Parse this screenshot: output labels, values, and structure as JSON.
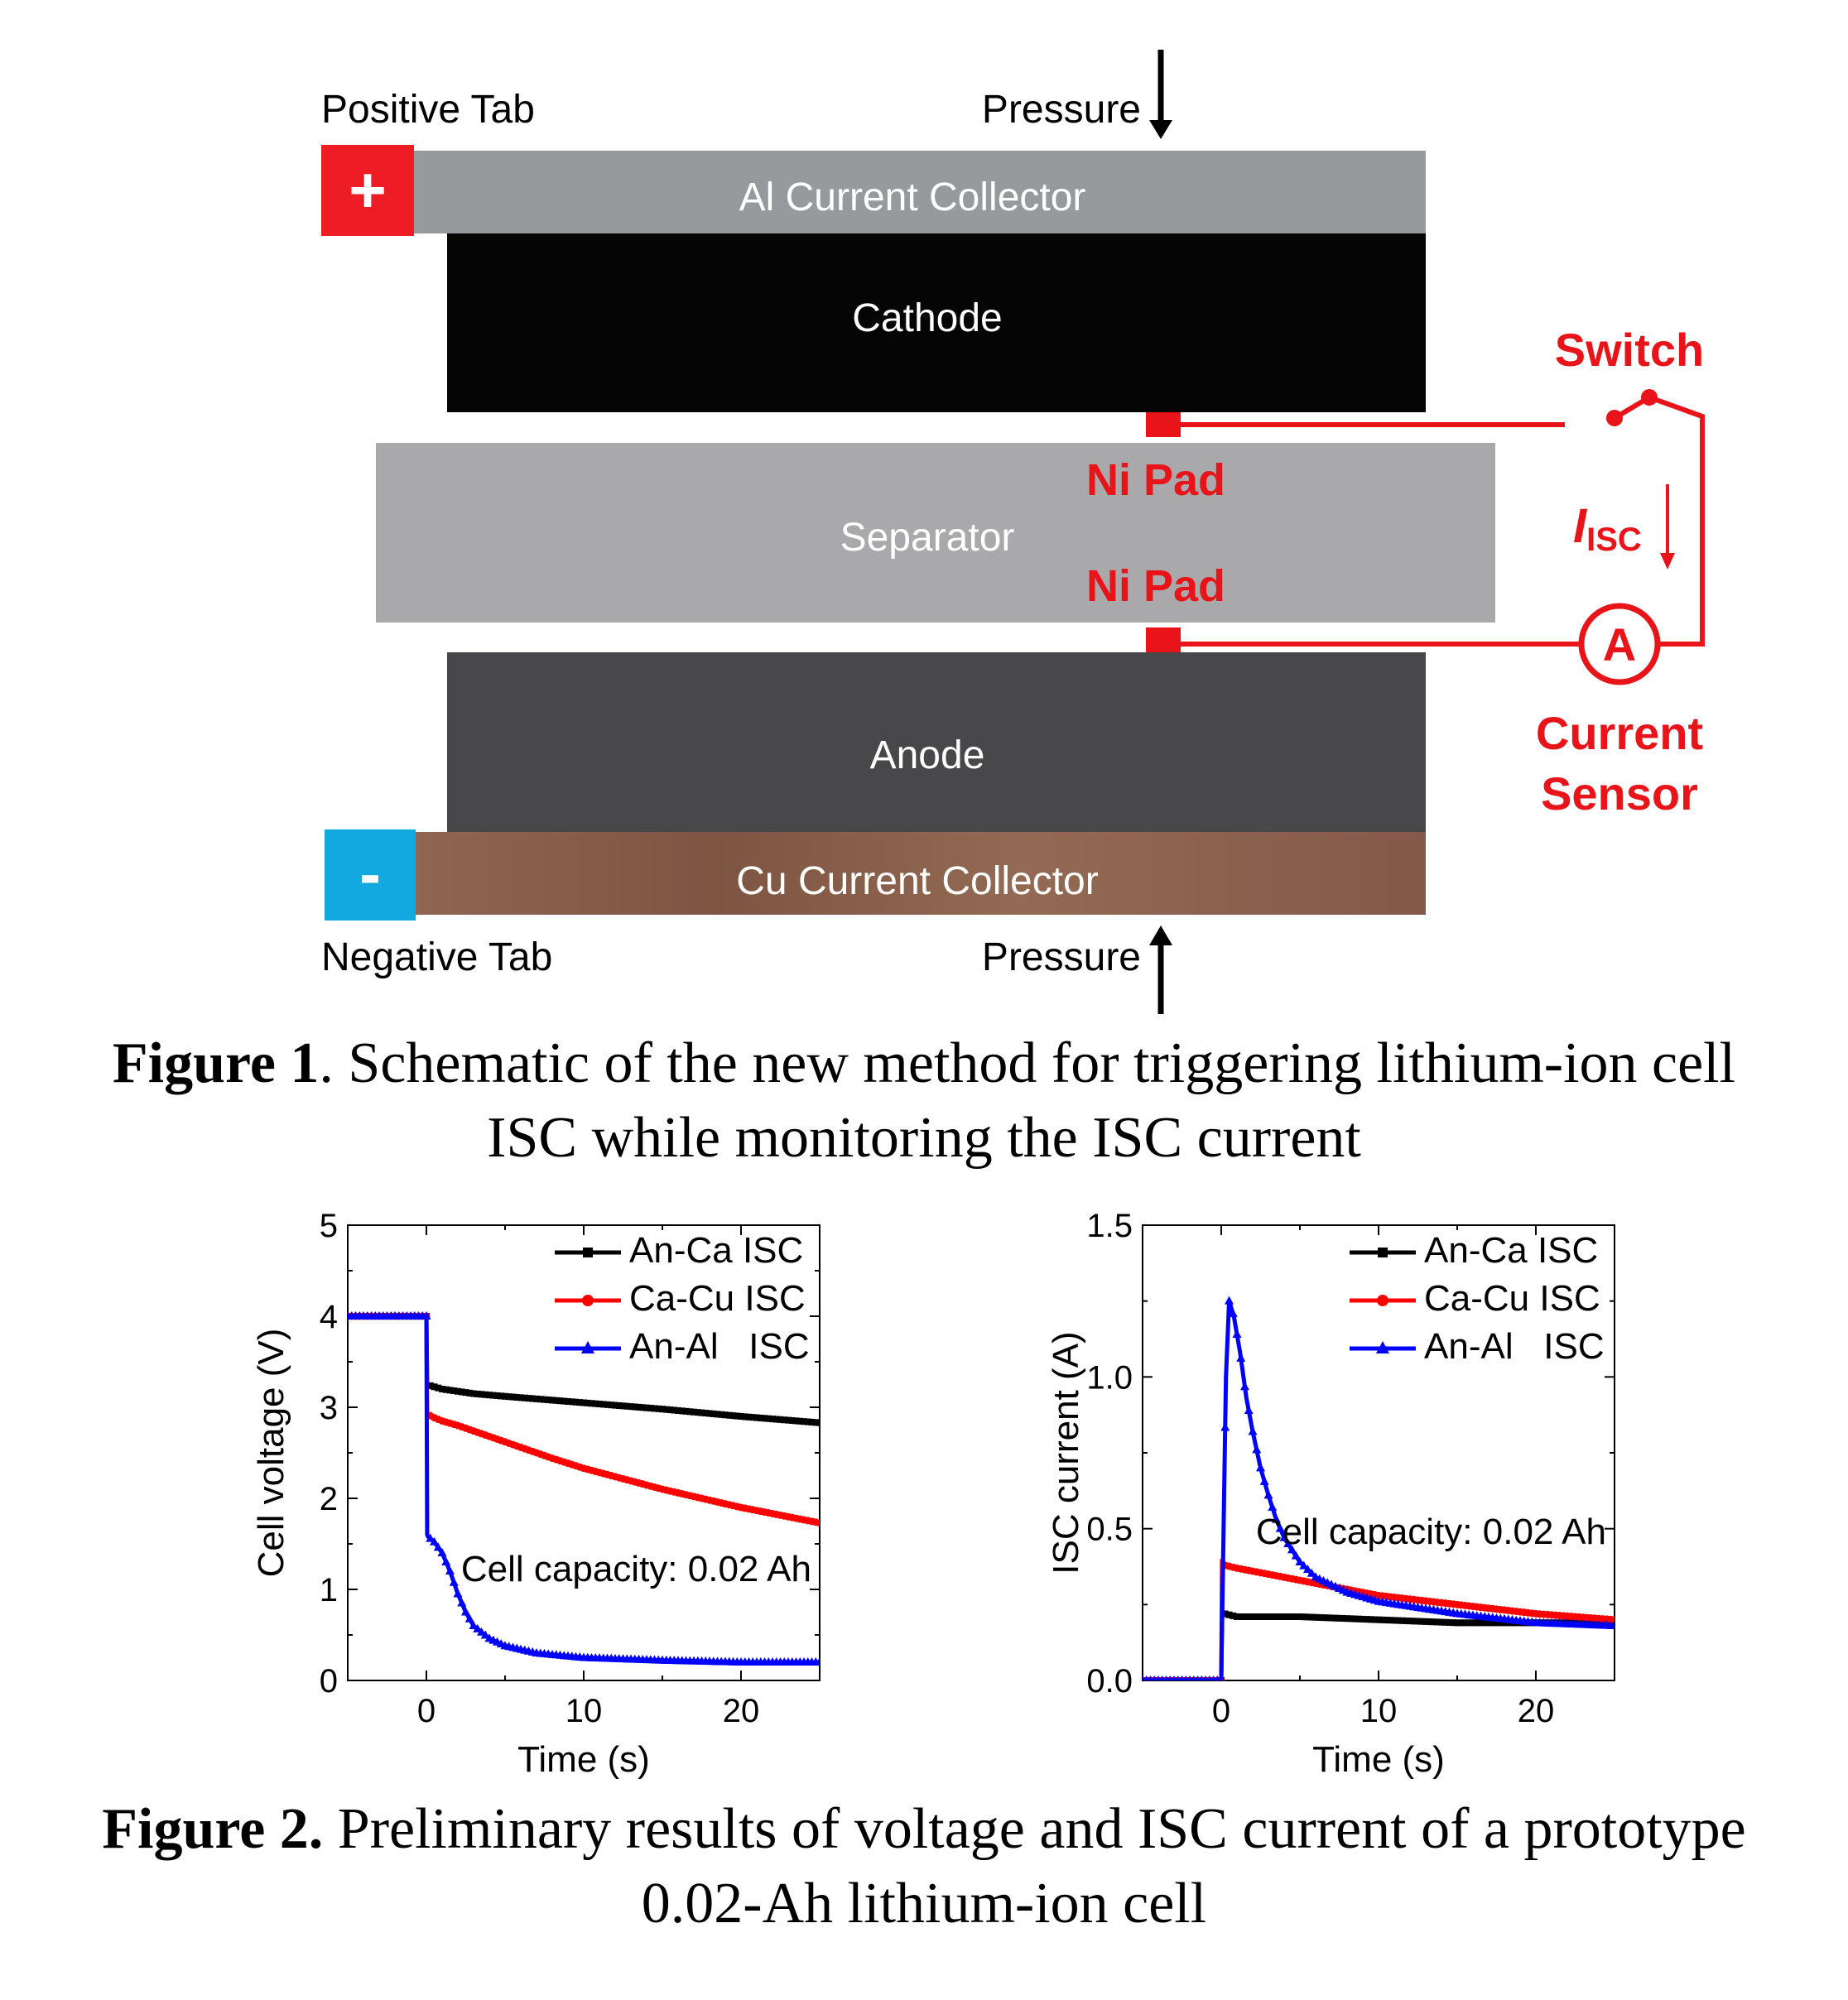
{
  "figure1": {
    "labels": {
      "positive_tab": "Positive Tab",
      "negative_tab": "Negative Tab",
      "pressure_top": "Pressure",
      "pressure_bottom": "Pressure",
      "plus_sign": "+",
      "minus_sign": "-",
      "al_collector": "Al Current Collector",
      "cathode": "Cathode",
      "separator": "Separator",
      "anode": "Anode",
      "cu_collector": "Cu Current Collector",
      "ni_pad_top": "Ni Pad",
      "ni_pad_bottom": "Ni Pad",
      "switch": "Switch",
      "isc_symbol": "I",
      "isc_subscript": "ISC",
      "ammeter": "A",
      "current_sensor_line1": "Current",
      "current_sensor_line2": "Sensor"
    },
    "caption_bold": "Figure 1",
    "caption_line1": ". Schematic of the new method for triggering lithium-ion cell",
    "caption_line2": "ISC while monitoring the ISC current",
    "colors": {
      "positive_tab": "#ee1c24",
      "negative_tab": "#12a9e0",
      "al_collector": "#97999c",
      "cathode": "#050505",
      "separator": "#a9a9ab",
      "anode": "#48484a",
      "cu_collector": "#8b6049",
      "circuit": "#e8141a"
    }
  },
  "figure2": {
    "caption_bold": "Figure 2.",
    "caption_line1": " Preliminary results of voltage and ISC current of a prototype",
    "caption_line2": "0.02-Ah lithium-ion cell"
  },
  "chart_data": [
    {
      "type": "line",
      "xlabel": "Time (s)",
      "ylabel": "Cell voltage (V)",
      "xlim": [
        -5,
        25
      ],
      "ylim": [
        0,
        5
      ],
      "xticks": [
        0,
        10,
        20
      ],
      "yticks": [
        0,
        1,
        2,
        3,
        4,
        5
      ],
      "annotation": "Cell capacity: 0.02 Ah",
      "legend_position": "top-right",
      "series": [
        {
          "name": "An-Ca ISC",
          "color": "#000000",
          "marker": "square",
          "x": [
            -5,
            -4,
            -3,
            -2,
            -1,
            0,
            0.05,
            0.1,
            0.2,
            1,
            3,
            5,
            10,
            15,
            20,
            25
          ],
          "y": [
            4.0,
            4.0,
            4.0,
            4.0,
            4.0,
            4.0,
            3.25,
            3.25,
            3.24,
            3.2,
            3.15,
            3.12,
            3.05,
            2.98,
            2.9,
            2.83
          ]
        },
        {
          "name": "Ca-Cu ISC",
          "color": "#ff0000",
          "marker": "circle",
          "x": [
            -5,
            -4,
            -3,
            -2,
            -1,
            0,
            0.05,
            0.1,
            0.3,
            1,
            2,
            3,
            5,
            8,
            10,
            15,
            20,
            25
          ],
          "y": [
            4.0,
            4.0,
            4.0,
            4.0,
            4.0,
            4.0,
            2.95,
            2.93,
            2.9,
            2.85,
            2.8,
            2.74,
            2.62,
            2.44,
            2.33,
            2.1,
            1.9,
            1.73
          ]
        },
        {
          "name": "An-Al   ISC",
          "color": "#0000ff",
          "marker": "triangle",
          "x": [
            -5,
            -4,
            -3,
            -2,
            -1,
            0,
            0.05,
            0.1,
            0.5,
            1,
            1.5,
            2,
            2.5,
            3,
            4,
            5,
            7,
            10,
            15,
            20,
            25
          ],
          "y": [
            4.0,
            4.0,
            4.0,
            4.0,
            4.0,
            4.0,
            1.6,
            1.58,
            1.52,
            1.4,
            1.2,
            0.95,
            0.75,
            0.6,
            0.46,
            0.38,
            0.3,
            0.25,
            0.22,
            0.2,
            0.2
          ]
        }
      ]
    },
    {
      "type": "line",
      "xlabel": "Time (s)",
      "ylabel": "ISC current (A)",
      "xlim": [
        -5,
        25
      ],
      "ylim": [
        0,
        1.5
      ],
      "xticks": [
        0,
        10,
        20
      ],
      "yticks": [
        0.0,
        0.5,
        1.0,
        1.5
      ],
      "ytick_labels": [
        "0.0",
        "0.5",
        "1.0",
        "1.5"
      ],
      "annotation": "Cell capacity: 0.02 Ah",
      "legend_position": "top-right",
      "series": [
        {
          "name": "An-Ca ISC",
          "color": "#000000",
          "marker": "square",
          "x": [
            -5,
            -3,
            -1,
            0,
            0.05,
            0.2,
            1,
            3,
            5,
            10,
            15,
            20,
            25
          ],
          "y": [
            0,
            0,
            0,
            0,
            0.22,
            0.22,
            0.21,
            0.21,
            0.21,
            0.2,
            0.19,
            0.19,
            0.19
          ]
        },
        {
          "name": "Ca-Cu ISC",
          "color": "#ff0000",
          "marker": "circle",
          "x": [
            -5,
            -3,
            -1,
            0,
            0.05,
            0.2,
            1,
            2,
            3,
            5,
            8,
            10,
            15,
            20,
            25
          ],
          "y": [
            0,
            0,
            0,
            0,
            0.4,
            0.38,
            0.37,
            0.36,
            0.35,
            0.33,
            0.3,
            0.28,
            0.25,
            0.22,
            0.2
          ]
        },
        {
          "name": "An-Al   ISC",
          "color": "#0000ff",
          "marker": "triangle",
          "x": [
            -5,
            -3,
            -1,
            0,
            0.3,
            0.5,
            0.8,
            1.2,
            1.6,
            2,
            2.5,
            3,
            3.5,
            4,
            5,
            6,
            8,
            10,
            15,
            20,
            25
          ],
          "y": [
            0,
            0,
            0,
            0,
            1.0,
            1.25,
            1.2,
            1.08,
            0.93,
            0.82,
            0.7,
            0.61,
            0.53,
            0.47,
            0.39,
            0.34,
            0.29,
            0.26,
            0.22,
            0.19,
            0.18
          ]
        }
      ]
    }
  ]
}
